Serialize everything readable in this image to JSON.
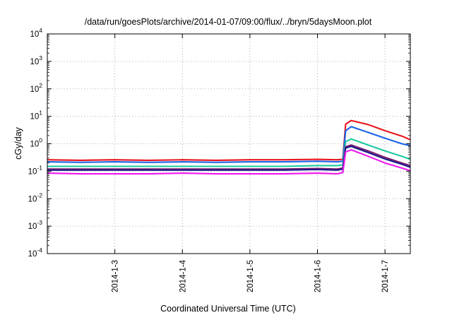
{
  "chart_data": {
    "type": "line",
    "title": "/data/run/goesPlots/archive/2014-01-07/09:00/flux/../bryn/5daysMoon.plot",
    "xlabel": "Coordinated Universal Time (UTC)",
    "ylabel": "cGy/day",
    "yscale": "log",
    "ylim": [
      0.0001,
      10000
    ],
    "xlim": [
      "2014-01-02 00:00",
      "2014-01-07 09:00"
    ],
    "grid": true,
    "legend": "none",
    "y_ticks": [
      {
        "base": "10",
        "exp": "-4",
        "value": 0.0001
      },
      {
        "base": "10",
        "exp": "-3",
        "value": 0.001
      },
      {
        "base": "10",
        "exp": "-2",
        "value": 0.01
      },
      {
        "base": "10",
        "exp": "-1",
        "value": 0.1
      },
      {
        "base": "10",
        "exp": "0",
        "value": 1
      },
      {
        "base": "10",
        "exp": "1",
        "value": 10
      },
      {
        "base": "10",
        "exp": "2",
        "value": 100
      },
      {
        "base": "10",
        "exp": "3",
        "value": 1000
      },
      {
        "base": "10",
        "exp": "4",
        "value": 10000
      }
    ],
    "x_ticks": [
      {
        "label": "2014-1-3",
        "value": "2014-01-03 00:00"
      },
      {
        "label": "2014-1-4",
        "value": "2014-01-04 00:00"
      },
      {
        "label": "2014-1-5",
        "value": "2014-01-05 00:00"
      },
      {
        "label": "2014-1-6",
        "value": "2014-01-06 00:00"
      },
      {
        "label": "2014-1-7",
        "value": "2014-01-07 00:00"
      }
    ],
    "series": [
      {
        "color": "#e8141c",
        "x": [
          "2014-01-02 00:00",
          "2014-01-02 12:00",
          "2014-01-03 00:00",
          "2014-01-03 12:00",
          "2014-01-04 00:00",
          "2014-01-04 12:00",
          "2014-01-05 00:00",
          "2014-01-05 12:00",
          "2014-01-06 00:00",
          "2014-01-06 07:00",
          "2014-01-06 09:00",
          "2014-01-06 10:00",
          "2014-01-06 12:00",
          "2014-01-06 18:00",
          "2014-01-07 00:00",
          "2014-01-07 06:00",
          "2014-01-07 09:00"
        ],
        "y": [
          0.26,
          0.25,
          0.26,
          0.25,
          0.26,
          0.25,
          0.26,
          0.26,
          0.27,
          0.26,
          0.27,
          5.2,
          7.0,
          5.0,
          3.0,
          1.9,
          1.4
        ]
      },
      {
        "color": "#1a63e8",
        "x": [
          "2014-01-02 00:00",
          "2014-01-02 12:00",
          "2014-01-03 00:00",
          "2014-01-03 12:00",
          "2014-01-04 00:00",
          "2014-01-04 12:00",
          "2014-01-05 00:00",
          "2014-01-05 12:00",
          "2014-01-06 00:00",
          "2014-01-06 07:00",
          "2014-01-06 09:00",
          "2014-01-06 10:00",
          "2014-01-06 12:00",
          "2014-01-06 18:00",
          "2014-01-07 00:00",
          "2014-01-07 06:00",
          "2014-01-07 09:00"
        ],
        "y": [
          0.22,
          0.21,
          0.22,
          0.21,
          0.22,
          0.21,
          0.22,
          0.22,
          0.23,
          0.22,
          0.23,
          3.0,
          4.2,
          2.6,
          1.6,
          1.0,
          0.85
        ]
      },
      {
        "color": "#1ec8a0",
        "x": [
          "2014-01-02 00:00",
          "2014-01-02 12:00",
          "2014-01-03 00:00",
          "2014-01-03 12:00",
          "2014-01-04 00:00",
          "2014-01-04 12:00",
          "2014-01-05 00:00",
          "2014-01-05 12:00",
          "2014-01-06 00:00",
          "2014-01-06 07:00",
          "2014-01-06 09:00",
          "2014-01-06 10:00",
          "2014-01-06 12:00",
          "2014-01-06 18:00",
          "2014-01-07 00:00",
          "2014-01-07 06:00",
          "2014-01-07 09:00"
        ],
        "y": [
          0.15,
          0.15,
          0.15,
          0.15,
          0.15,
          0.15,
          0.15,
          0.15,
          0.16,
          0.16,
          0.17,
          1.2,
          1.5,
          0.9,
          0.55,
          0.35,
          0.27
        ]
      },
      {
        "color": "#7a1e6e",
        "x": [
          "2014-01-02 00:00",
          "2014-01-02 12:00",
          "2014-01-03 00:00",
          "2014-01-03 12:00",
          "2014-01-04 00:00",
          "2014-01-04 12:00",
          "2014-01-05 00:00",
          "2014-01-05 12:00",
          "2014-01-06 00:00",
          "2014-01-06 07:00",
          "2014-01-06 09:00",
          "2014-01-06 10:00",
          "2014-01-06 12:00",
          "2014-01-06 18:00",
          "2014-01-07 00:00",
          "2014-01-07 06:00",
          "2014-01-07 09:00"
        ],
        "y": [
          0.12,
          0.12,
          0.12,
          0.12,
          0.12,
          0.12,
          0.12,
          0.12,
          0.125,
          0.12,
          0.13,
          0.78,
          0.9,
          0.55,
          0.32,
          0.2,
          0.16
        ]
      },
      {
        "color": "#1a1a8a",
        "x": [
          "2014-01-02 00:00",
          "2014-01-02 12:00",
          "2014-01-03 00:00",
          "2014-01-03 12:00",
          "2014-01-04 00:00",
          "2014-01-04 12:00",
          "2014-01-05 00:00",
          "2014-01-05 12:00",
          "2014-01-06 00:00",
          "2014-01-06 07:00",
          "2014-01-06 09:00",
          "2014-01-06 10:00",
          "2014-01-06 12:00",
          "2014-01-06 18:00",
          "2014-01-07 00:00",
          "2014-01-07 06:00",
          "2014-01-07 09:00"
        ],
        "y": [
          0.11,
          0.11,
          0.11,
          0.11,
          0.11,
          0.11,
          0.11,
          0.11,
          0.115,
          0.11,
          0.12,
          0.7,
          0.8,
          0.48,
          0.28,
          0.18,
          0.14
        ]
      },
      {
        "color": "#ee18ee",
        "x": [
          "2014-01-02 00:00",
          "2014-01-02 12:00",
          "2014-01-03 00:00",
          "2014-01-03 12:00",
          "2014-01-04 00:00",
          "2014-01-04 12:00",
          "2014-01-05 00:00",
          "2014-01-05 12:00",
          "2014-01-06 00:00",
          "2014-01-06 07:00",
          "2014-01-06 09:00",
          "2014-01-06 10:00",
          "2014-01-06 12:00",
          "2014-01-06 18:00",
          "2014-01-07 00:00",
          "2014-01-07 06:00",
          "2014-01-07 09:00"
        ],
        "y": [
          0.085,
          0.08,
          0.08,
          0.08,
          0.085,
          0.08,
          0.08,
          0.08,
          0.085,
          0.08,
          0.09,
          0.5,
          0.6,
          0.35,
          0.2,
          0.13,
          0.105
        ]
      }
    ]
  }
}
